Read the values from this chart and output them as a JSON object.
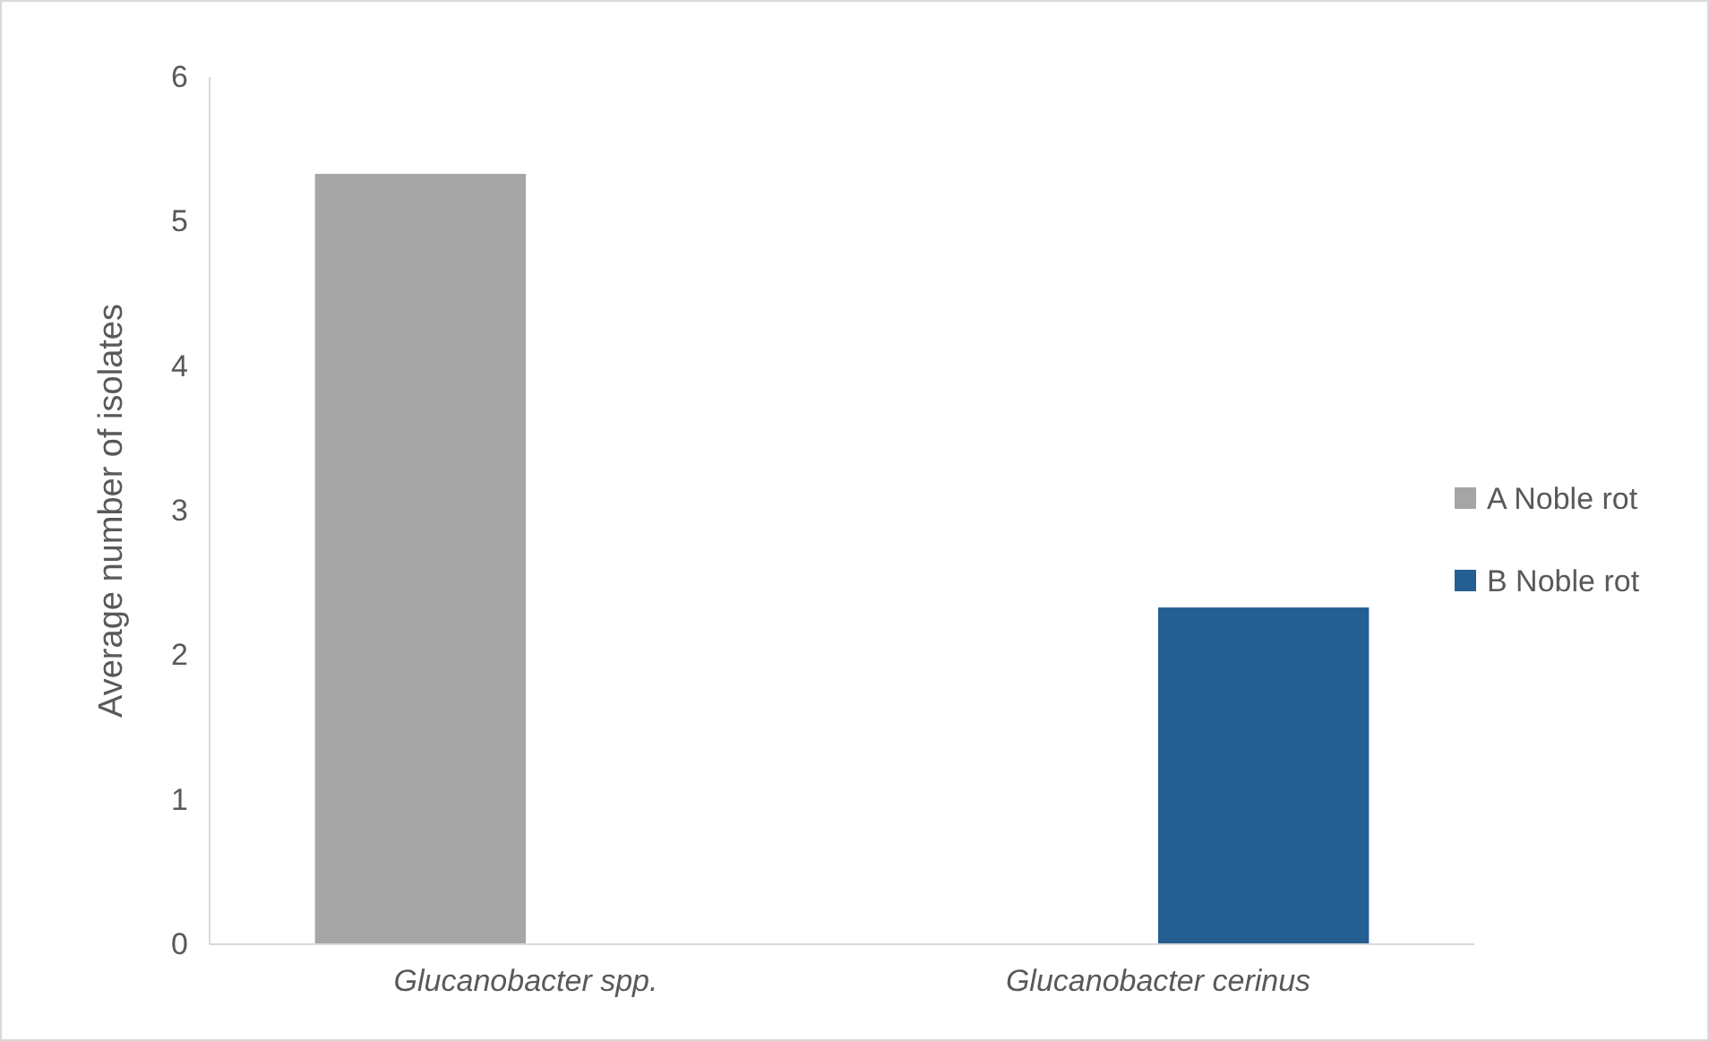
{
  "chart_data": {
    "type": "bar",
    "ylabel": "Average number of isolates",
    "categories": [
      "Glucanobacter spp.",
      "Glucanobacter cerinus"
    ],
    "series": [
      {
        "name": "A Noble rot",
        "color": "#a5a5a5",
        "values": [
          5.33,
          null
        ]
      },
      {
        "name": "B Noble rot",
        "color": "#255e91",
        "values": [
          null,
          2.33
        ]
      }
    ],
    "ylim": [
      0,
      6
    ],
    "yticks": [
      0,
      1,
      2,
      3,
      4,
      5,
      6
    ],
    "grid": false,
    "legend": "right"
  }
}
